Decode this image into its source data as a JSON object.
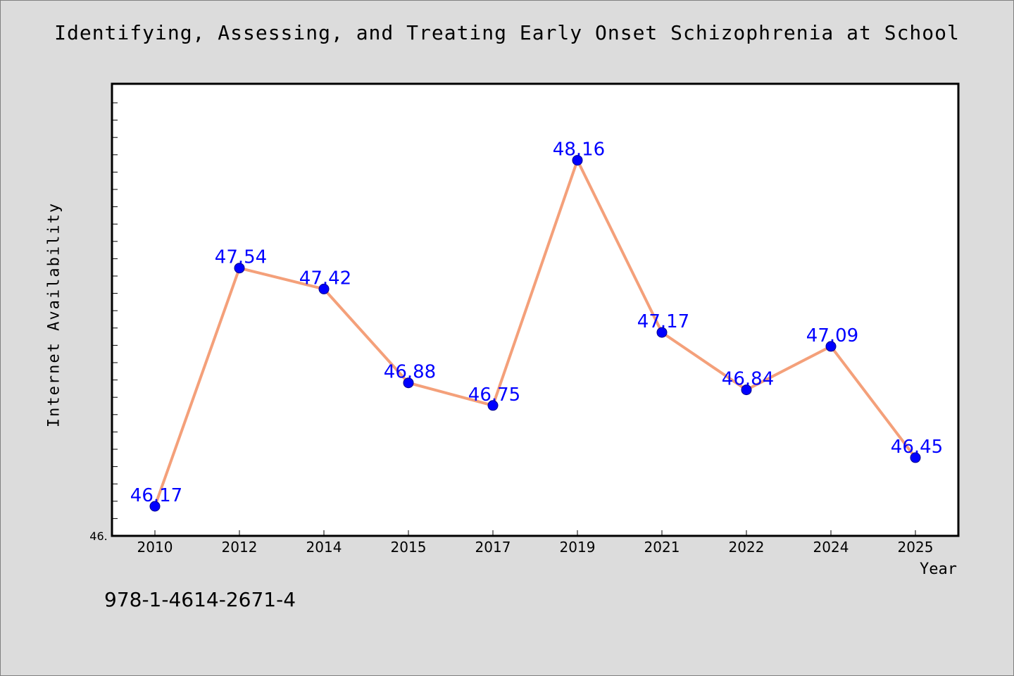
{
  "chart_data": {
    "type": "line",
    "title": "Identifying, Assessing, and Treating Early Onset Schizophrenia at School",
    "xlabel": "Year",
    "ylabel": "Internet Availability",
    "categories": [
      "2010",
      "2012",
      "2014",
      "2015",
      "2017",
      "2019",
      "2021",
      "2022",
      "2024",
      "2025"
    ],
    "series": [
      {
        "values": [
          46.17,
          47.54,
          47.42,
          46.88,
          46.75,
          48.16,
          47.17,
          46.84,
          47.09,
          46.45
        ]
      }
    ],
    "data_labels": [
      "46.17",
      "47.54",
      "47.42",
      "46.88",
      "46.75",
      "48.16",
      "47.17",
      "46.84",
      "47.09",
      "46.45"
    ],
    "ylim": [
      46.0,
      48.6
    ],
    "y_tick_label": "46.",
    "grid": false,
    "colors": {
      "line": "#f4a07a",
      "marker": "#0000ff",
      "data_label": "#0000ff",
      "plot_bg": "#ffffff",
      "page_bg": "#dcdcdc"
    }
  },
  "footer": {
    "isbn": "978-1-4614-2671-4"
  }
}
